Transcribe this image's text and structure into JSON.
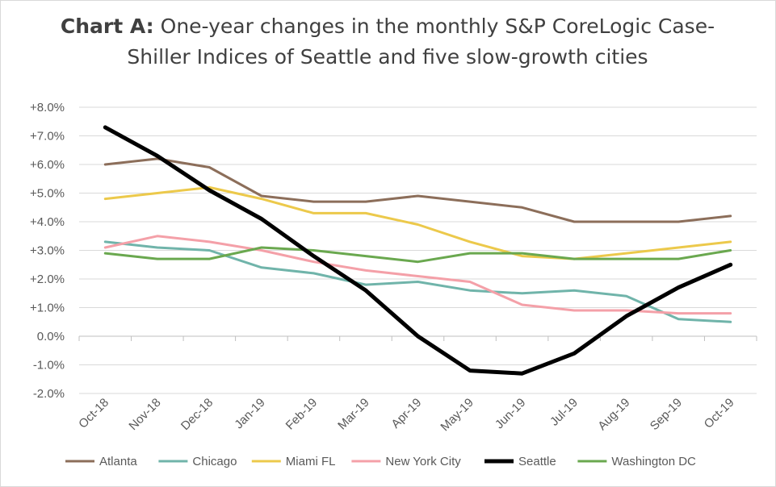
{
  "chart_data": {
    "type": "line",
    "title_bold": "Chart A:",
    "title": "One-year changes in the monthly S&P CoreLogic Case-Shiller Indices of Seattle and five slow-growth cities",
    "categories": [
      "Oct-18",
      "Nov-18",
      "Dec-18",
      "Jan-19",
      "Feb-19",
      "Mar-19",
      "Apr-19",
      "May-19",
      "Jun-19",
      "Jul-19",
      "Aug-19",
      "Sep-19",
      "Oct-19"
    ],
    "ylim": [
      -2.0,
      8.0
    ],
    "yticks": [
      -2,
      -1,
      0,
      1,
      2,
      3,
      4,
      5,
      6,
      7,
      8
    ],
    "ytick_labels": [
      "-2.0%",
      "-1.0%",
      "0.0%",
      "+1.0%",
      "+2.0%",
      "+3.0%",
      "+4.0%",
      "+5.0%",
      "+6.0%",
      "+7.0%",
      "+8.0%"
    ],
    "grid": true,
    "legend_position": "bottom",
    "series": [
      {
        "name": "Atlanta",
        "color": "#8c6e5a",
        "width": 3,
        "values": [
          6.0,
          6.2,
          5.9,
          4.9,
          4.7,
          4.7,
          4.9,
          4.7,
          4.5,
          4.0,
          4.0,
          4.0,
          4.2
        ]
      },
      {
        "name": "Chicago",
        "color": "#70b4aa",
        "width": 3,
        "values": [
          3.3,
          3.1,
          3.0,
          2.4,
          2.2,
          1.8,
          1.9,
          1.6,
          1.5,
          1.6,
          1.4,
          0.6,
          0.5
        ]
      },
      {
        "name": "Miami FL",
        "color": "#ecc94b",
        "width": 3,
        "values": [
          4.8,
          5.0,
          5.2,
          4.8,
          4.3,
          4.3,
          3.9,
          3.3,
          2.8,
          2.7,
          2.9,
          3.1,
          3.3
        ]
      },
      {
        "name": "New York City",
        "color": "#f4a0a8",
        "width": 3,
        "values": [
          3.1,
          3.5,
          3.3,
          3.0,
          2.6,
          2.3,
          2.1,
          1.9,
          1.1,
          0.9,
          0.9,
          0.8,
          0.8
        ]
      },
      {
        "name": "Seattle",
        "color": "#000000",
        "width": 5,
        "values": [
          7.3,
          6.3,
          5.1,
          4.1,
          2.8,
          1.6,
          0.0,
          -1.2,
          -1.3,
          -0.6,
          0.7,
          1.7,
          2.5
        ]
      },
      {
        "name": "Washington DC",
        "color": "#6aa84f",
        "width": 3,
        "values": [
          2.9,
          2.7,
          2.7,
          3.1,
          3.0,
          2.8,
          2.6,
          2.9,
          2.9,
          2.7,
          2.7,
          2.7,
          3.0
        ]
      }
    ]
  }
}
